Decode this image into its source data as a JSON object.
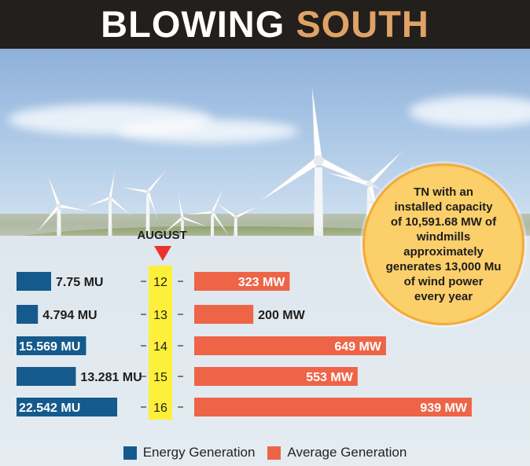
{
  "header": {
    "title_part1": "BLOWING",
    "title_part2": "SOUTH"
  },
  "callout": {
    "text": "TN with an\ninstalled capacity\nof 10,591.68 MW of\nwindmills approximately\ngenerates 13,000 Mu\nof wind power\nevery year"
  },
  "colors": {
    "energy": "#155a8c",
    "average": "#ee6447",
    "axis_band": "#fdf03a",
    "marker": "#e8342d",
    "header_bg": "#231f1c",
    "header_accent": "#e0a365",
    "callout_fill": "#fbcf6a"
  },
  "chart_data": {
    "type": "bar",
    "category_axis_title": "AUGUST",
    "categories": [
      "12",
      "13",
      "14",
      "15",
      "16"
    ],
    "series": [
      {
        "name": "Energy Generation",
        "unit": "MU",
        "values": [
          7.75,
          4.794,
          15.569,
          13.281,
          22.542
        ],
        "labels": [
          "7.75 MU",
          "4.794 MU",
          "15.569 MU",
          "13.281 MU",
          "22.542 MU"
        ]
      },
      {
        "name": "Average Generation",
        "unit": "MW",
        "values": [
          323,
          200,
          649,
          553,
          939
        ],
        "labels": [
          "323 MW",
          "200 MW",
          "649 MW",
          "553 MW",
          "939 MW"
        ]
      }
    ],
    "legend": [
      "Energy Generation",
      "Average Generation"
    ],
    "legend_position": "bottom"
  }
}
